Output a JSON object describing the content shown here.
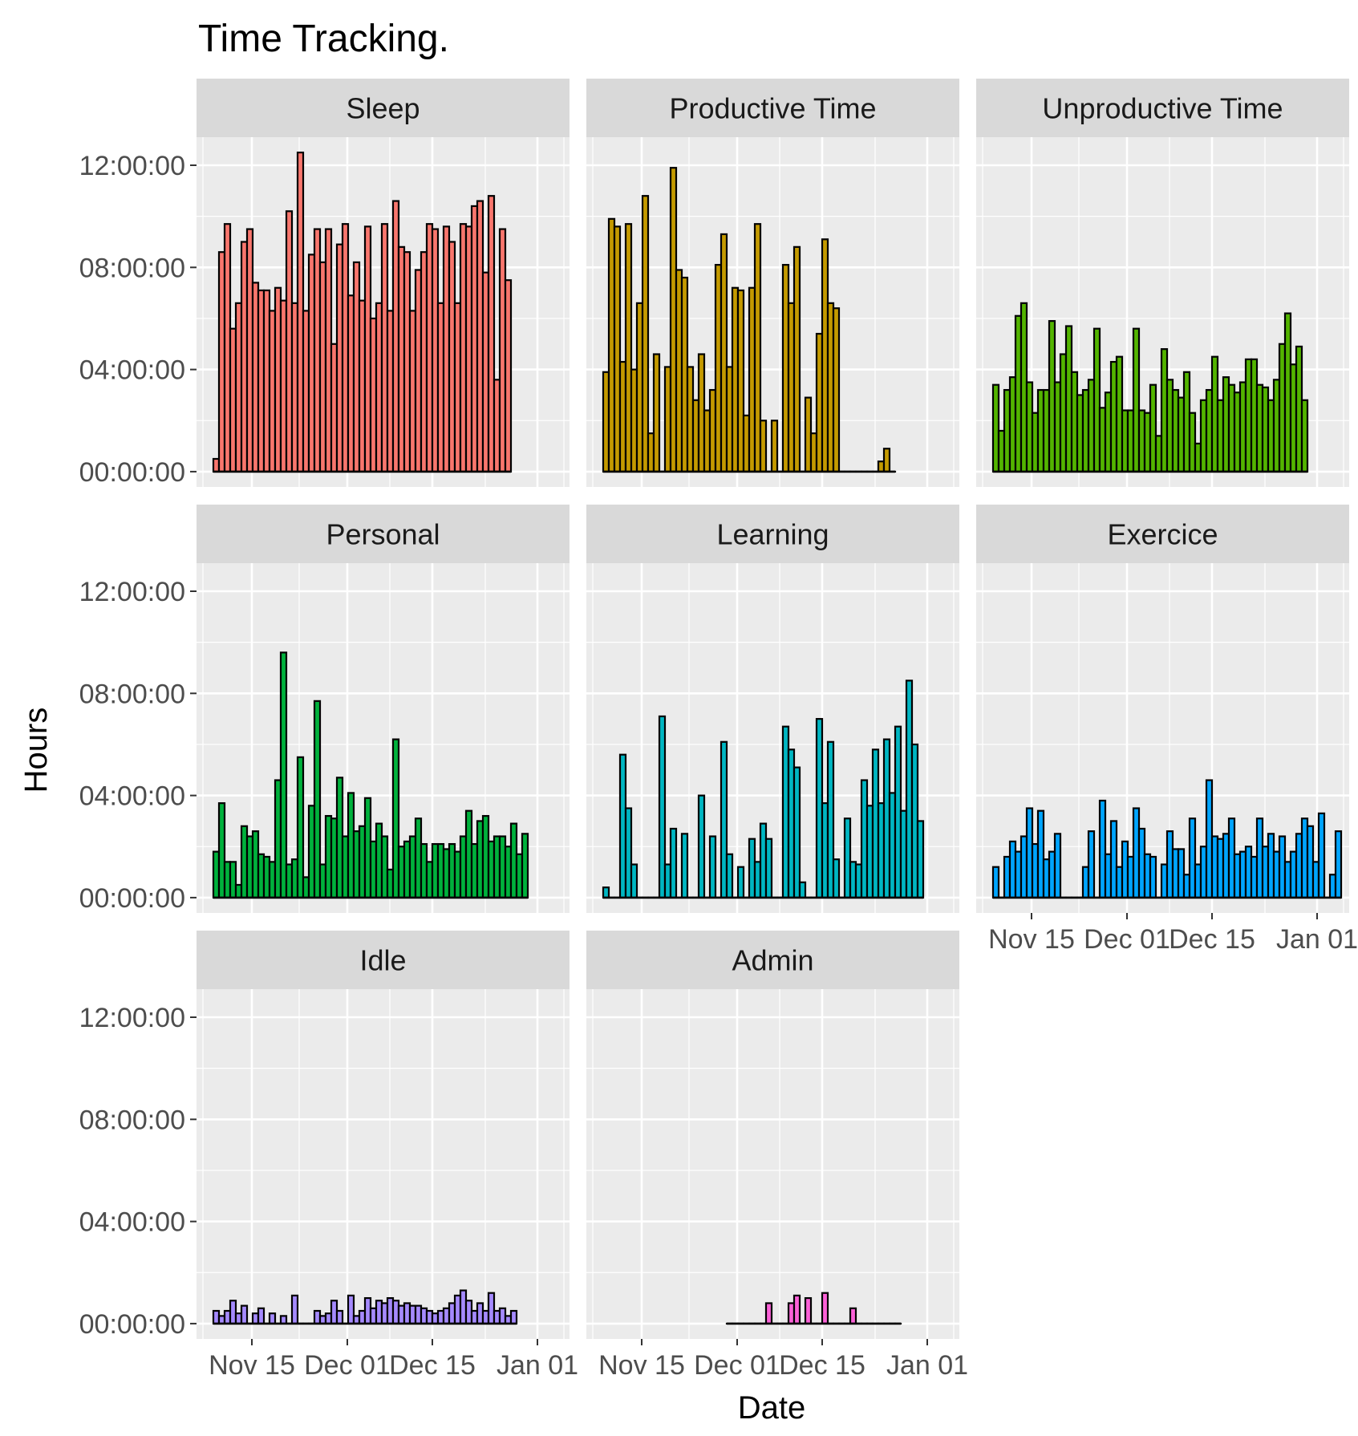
{
  "chart_data": {
    "type": "bar",
    "layout": "facet_wrap",
    "title": "Time Tracking.",
    "xlabel": "Date",
    "ylabel": "Hours",
    "x_ticks": [
      "Nov 15",
      "Dec 01",
      "Dec 15",
      "Jan 01"
    ],
    "y_ticks": [
      "00:00:00",
      "04:00:00",
      "08:00:00",
      "12:00:00"
    ],
    "ylim_hours": [
      -0.6,
      13.1
    ],
    "grid": true,
    "panel_background": "#ebebeb",
    "strip_background": "#d9d9d9",
    "bar_outline": "#000000",
    "facets": [
      {
        "name": "Sleep",
        "color": "#f8766d",
        "start_index": 0,
        "values": [
          0.5,
          8.6,
          9.7,
          5.6,
          6.6,
          9.0,
          9.5,
          7.4,
          7.1,
          7.1,
          6.3,
          7.2,
          6.7,
          10.2,
          6.6,
          12.5,
          6.3,
          8.5,
          9.5,
          8.2,
          9.5,
          5.0,
          8.9,
          9.7,
          6.9,
          8.2,
          6.7,
          9.6,
          6.0,
          6.6,
          9.7,
          6.3,
          10.6,
          8.8,
          8.6,
          6.3,
          7.9,
          8.6,
          9.7,
          9.5,
          6.6,
          9.6,
          9.0,
          6.6,
          9.7,
          9.6,
          10.4,
          10.6,
          7.8,
          10.8,
          3.6,
          9.5,
          7.5
        ]
      },
      {
        "name": "Productive Time",
        "color": "#c49a00",
        "start_index": 0,
        "values": [
          3.9,
          9.9,
          9.6,
          4.3,
          9.7,
          4.0,
          6.6,
          10.8,
          1.5,
          4.6,
          0,
          4.1,
          11.9,
          7.9,
          7.6,
          4.1,
          2.8,
          4.6,
          2.4,
          3.2,
          8.1,
          9.3,
          4.1,
          7.2,
          7.1,
          2.2,
          7.2,
          9.7,
          2.0,
          0,
          2.0,
          0,
          8.1,
          6.6,
          8.8,
          0,
          2.9,
          1.5,
          5.4,
          9.1,
          6.6,
          6.4,
          0,
          0,
          0,
          0,
          0,
          0,
          0,
          0.4,
          0.9,
          0
        ]
      },
      {
        "name": "Unproductive Time",
        "color": "#53b400",
        "start_index": 0,
        "values": [
          3.4,
          1.6,
          3.2,
          3.7,
          6.1,
          6.6,
          3.5,
          2.3,
          3.2,
          3.2,
          5.9,
          3.5,
          4.6,
          5.7,
          3.9,
          3.0,
          3.2,
          3.6,
          5.6,
          2.5,
          3.1,
          4.3,
          4.5,
          2.4,
          2.4,
          5.6,
          2.4,
          2.3,
          3.4,
          1.4,
          4.8,
          3.6,
          3.2,
          2.9,
          3.9,
          2.3,
          1.1,
          2.8,
          3.2,
          4.5,
          2.8,
          3.7,
          3.4,
          3.1,
          3.5,
          4.4,
          4.4,
          3.4,
          3.3,
          2.8,
          3.6,
          5.0,
          6.2,
          4.2,
          4.9,
          2.8
        ]
      },
      {
        "name": "Personal",
        "color": "#00b13c",
        "start_index": 0,
        "values": [
          1.8,
          3.7,
          1.4,
          1.4,
          0.5,
          2.8,
          2.4,
          2.6,
          1.7,
          1.6,
          1.4,
          4.6,
          9.6,
          1.3,
          1.5,
          5.5,
          0.8,
          3.6,
          7.7,
          1.3,
          3.2,
          3.1,
          4.7,
          2.4,
          4.1,
          2.6,
          2.8,
          3.9,
          2.2,
          2.9,
          2.4,
          1.1,
          6.2,
          2.0,
          2.2,
          2.4,
          3.1,
          2.1,
          1.4,
          2.1,
          2.1,
          1.9,
          2.1,
          1.8,
          2.4,
          3.4,
          2.1,
          3.0,
          3.2,
          2.2,
          2.4,
          2.4,
          2.0,
          2.9,
          1.7,
          2.5
        ]
      },
      {
        "name": "Learning",
        "color": "#00b6c2",
        "start_index": 0,
        "values": [
          0.4,
          0,
          0,
          5.6,
          3.5,
          1.3,
          0,
          0,
          0,
          0,
          7.1,
          1.3,
          2.7,
          0,
          2.5,
          0,
          0,
          4.0,
          0,
          2.4,
          0,
          6.1,
          1.7,
          0,
          1.2,
          0,
          2.3,
          1.4,
          2.9,
          2.3,
          0,
          0,
          6.7,
          5.8,
          5.1,
          0.6,
          0,
          0,
          7.0,
          3.7,
          6.1,
          1.5,
          0,
          3.1,
          1.4,
          1.3,
          4.6,
          3.6,
          5.8,
          3.7,
          6.2,
          4.1,
          6.7,
          3.4,
          8.5,
          6.0,
          3.0
        ]
      },
      {
        "name": "Exercice",
        "color": "#00a5ff",
        "start_index": 0,
        "values": [
          1.2,
          0,
          1.6,
          2.2,
          1.8,
          2.4,
          3.5,
          2.1,
          3.4,
          1.5,
          1.8,
          2.5,
          0,
          0,
          0,
          0,
          1.2,
          2.6,
          0,
          3.8,
          1.7,
          3.0,
          1.2,
          2.2,
          1.6,
          3.5,
          2.7,
          1.7,
          1.6,
          0,
          1.3,
          2.6,
          1.9,
          1.9,
          0.9,
          3.1,
          1.3,
          2.0,
          4.6,
          2.4,
          2.3,
          2.5,
          3.1,
          1.7,
          1.8,
          2.0,
          1.6,
          3.1,
          2.0,
          2.5,
          1.8,
          2.4,
          1.4,
          1.8,
          2.5,
          3.1,
          2.8,
          1.4,
          3.3,
          0,
          0.9,
          2.6
        ]
      },
      {
        "name": "Idle",
        "color": "#a58aff",
        "start_index": 0,
        "values": [
          0.5,
          0.3,
          0.5,
          0.9,
          0.4,
          0.7,
          0,
          0.4,
          0.6,
          0,
          0.4,
          0,
          0.3,
          0,
          1.1,
          0,
          0,
          0,
          0.5,
          0.3,
          0.4,
          0.9,
          0.5,
          0,
          1.1,
          0.3,
          0.5,
          1.0,
          0.6,
          0.9,
          0.8,
          1.0,
          0.9,
          0.7,
          0.8,
          0.7,
          0.7,
          0.6,
          0.5,
          0.4,
          0.5,
          0.6,
          0.8,
          1.1,
          1.3,
          0.9,
          0.5,
          0.8,
          0.5,
          1.2,
          0.5,
          0.6,
          0.3,
          0.5
        ]
      },
      {
        "name": "Admin",
        "color": "#fb61d7",
        "start_index": 22,
        "values": [
          0,
          0,
          0,
          0,
          0,
          0,
          0,
          0.8,
          0,
          0,
          0,
          0.8,
          1.1,
          0,
          1.0,
          0,
          0,
          1.2,
          0,
          0,
          0,
          0,
          0.6,
          0,
          0,
          0,
          0,
          0,
          0,
          0,
          0
        ]
      }
    ]
  }
}
